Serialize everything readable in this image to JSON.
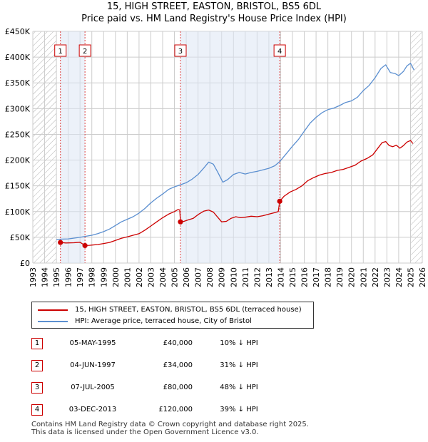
{
  "title_line1": "15, HIGH STREET, EASTON, BRISTOL, BS5 6DL",
  "title_line2": "Price paid vs. HM Land Registry's House Price Index (HPI)",
  "colors": {
    "property": "#cc0000",
    "hpi": "#5b8fd0",
    "grid": "#cccccc",
    "shade": "#dde6f4",
    "hatch": "#999999"
  },
  "chart_data": {
    "type": "line",
    "title": "Price paid vs. HM Land Registry's House Price Index (HPI)",
    "xlabel": "",
    "ylabel": "",
    "xlim": [
      1993,
      2026
    ],
    "ylim": [
      0,
      450000
    ],
    "x_ticks": [
      "1993",
      "1994",
      "1995",
      "1996",
      "1997",
      "1998",
      "1999",
      "2000",
      "2001",
      "2002",
      "2003",
      "2004",
      "2005",
      "2006",
      "2007",
      "2008",
      "2009",
      "2010",
      "2011",
      "2012",
      "2013",
      "2014",
      "2015",
      "2016",
      "2017",
      "2018",
      "2019",
      "2020",
      "2021",
      "2022",
      "2023",
      "2024",
      "2025",
      "2026"
    ],
    "y_ticks": [
      {
        "value": 0,
        "label": "£0"
      },
      {
        "value": 50000,
        "label": "£50K"
      },
      {
        "value": 100000,
        "label": "£100K"
      },
      {
        "value": 150000,
        "label": "£150K"
      },
      {
        "value": 200000,
        "label": "£200K"
      },
      {
        "value": 250000,
        "label": "£250K"
      },
      {
        "value": 300000,
        "label": "£300K"
      },
      {
        "value": 350000,
        "label": "£350K"
      },
      {
        "value": 400000,
        "label": "£400K"
      },
      {
        "value": 450000,
        "label": "£450K"
      }
    ],
    "grid": true,
    "hatched_before": 1995.0,
    "hatched_after": 2025.0,
    "series": [
      {
        "name": "15, HIGH STREET, EASTON, BRISTOL, BS5 6DL (terraced house)",
        "color": "#cc0000",
        "points": [
          [
            1995.34,
            40000
          ],
          [
            1995.8,
            39000
          ],
          [
            1996.5,
            39500
          ],
          [
            1997.0,
            40500
          ],
          [
            1997.42,
            34000
          ],
          [
            1997.8,
            34500
          ],
          [
            1998.5,
            36000
          ],
          [
            1999.0,
            38000
          ],
          [
            1999.5,
            40000
          ],
          [
            2000.0,
            44000
          ],
          [
            2000.5,
            48000
          ],
          [
            2001.0,
            51000
          ],
          [
            2001.5,
            54000
          ],
          [
            2002.0,
            57000
          ],
          [
            2002.5,
            64000
          ],
          [
            2003.0,
            72000
          ],
          [
            2003.5,
            80000
          ],
          [
            2004.0,
            88000
          ],
          [
            2004.5,
            95000
          ],
          [
            2005.0,
            100000
          ],
          [
            2005.3,
            104000
          ],
          [
            2005.45,
            103000
          ],
          [
            2005.51,
            80000
          ],
          [
            2005.8,
            81000
          ],
          [
            2006.2,
            84000
          ],
          [
            2006.6,
            87000
          ],
          [
            2007.0,
            94000
          ],
          [
            2007.5,
            101000
          ],
          [
            2007.9,
            103000
          ],
          [
            2008.3,
            99000
          ],
          [
            2008.7,
            88000
          ],
          [
            2009.0,
            80000
          ],
          [
            2009.4,
            81000
          ],
          [
            2009.8,
            87000
          ],
          [
            2010.2,
            90000
          ],
          [
            2010.6,
            88000
          ],
          [
            2011.0,
            89000
          ],
          [
            2011.5,
            91000
          ],
          [
            2012.0,
            90000
          ],
          [
            2012.5,
            92000
          ],
          [
            2013.0,
            95000
          ],
          [
            2013.5,
            98000
          ],
          [
            2013.8,
            100000
          ],
          [
            2013.92,
            120000
          ],
          [
            2014.3,
            130000
          ],
          [
            2014.8,
            138000
          ],
          [
            2015.3,
            143000
          ],
          [
            2015.8,
            150000
          ],
          [
            2016.3,
            160000
          ],
          [
            2016.8,
            166000
          ],
          [
            2017.3,
            171000
          ],
          [
            2017.8,
            174000
          ],
          [
            2018.3,
            176000
          ],
          [
            2018.8,
            180000
          ],
          [
            2019.3,
            182000
          ],
          [
            2019.8,
            186000
          ],
          [
            2020.3,
            190000
          ],
          [
            2020.8,
            198000
          ],
          [
            2021.3,
            203000
          ],
          [
            2021.8,
            210000
          ],
          [
            2022.2,
            222000
          ],
          [
            2022.6,
            234000
          ],
          [
            2022.9,
            236000
          ],
          [
            2023.2,
            228000
          ],
          [
            2023.5,
            226000
          ],
          [
            2023.8,
            229000
          ],
          [
            2024.1,
            223000
          ],
          [
            2024.4,
            228000
          ],
          [
            2024.7,
            235000
          ],
          [
            2025.0,
            238000
          ],
          [
            2025.2,
            232000
          ]
        ]
      },
      {
        "name": "HPI: Average price, terraced house, City of Bristol",
        "color": "#5b8fd0",
        "points": [
          [
            1995.0,
            46000
          ],
          [
            1995.5,
            46500
          ],
          [
            1996.0,
            47000
          ],
          [
            1996.5,
            48500
          ],
          [
            1997.0,
            50000
          ],
          [
            1997.5,
            52000
          ],
          [
            1998.0,
            54000
          ],
          [
            1998.5,
            57000
          ],
          [
            1999.0,
            61000
          ],
          [
            1999.5,
            66000
          ],
          [
            2000.0,
            73000
          ],
          [
            2000.5,
            80000
          ],
          [
            2001.0,
            85000
          ],
          [
            2001.5,
            90000
          ],
          [
            2002.0,
            97000
          ],
          [
            2002.5,
            106000
          ],
          [
            2003.0,
            117000
          ],
          [
            2003.5,
            126000
          ],
          [
            2004.0,
            134000
          ],
          [
            2004.5,
            143000
          ],
          [
            2005.0,
            148000
          ],
          [
            2005.5,
            152000
          ],
          [
            2006.0,
            156000
          ],
          [
            2006.5,
            163000
          ],
          [
            2007.0,
            172000
          ],
          [
            2007.5,
            185000
          ],
          [
            2007.9,
            196000
          ],
          [
            2008.3,
            192000
          ],
          [
            2008.7,
            175000
          ],
          [
            2009.1,
            157000
          ],
          [
            2009.5,
            162000
          ],
          [
            2010.0,
            172000
          ],
          [
            2010.5,
            176000
          ],
          [
            2011.0,
            173000
          ],
          [
            2011.5,
            176000
          ],
          [
            2012.0,
            178000
          ],
          [
            2012.5,
            181000
          ],
          [
            2013.0,
            184000
          ],
          [
            2013.5,
            189000
          ],
          [
            2013.92,
            197000
          ],
          [
            2014.5,
            213000
          ],
          [
            2015.0,
            227000
          ],
          [
            2015.5,
            240000
          ],
          [
            2016.0,
            256000
          ],
          [
            2016.5,
            272000
          ],
          [
            2017.0,
            283000
          ],
          [
            2017.5,
            292000
          ],
          [
            2018.0,
            298000
          ],
          [
            2018.5,
            301000
          ],
          [
            2019.0,
            306000
          ],
          [
            2019.5,
            312000
          ],
          [
            2020.0,
            315000
          ],
          [
            2020.5,
            322000
          ],
          [
            2021.0,
            335000
          ],
          [
            2021.5,
            345000
          ],
          [
            2022.0,
            360000
          ],
          [
            2022.5,
            378000
          ],
          [
            2022.9,
            385000
          ],
          [
            2023.3,
            370000
          ],
          [
            2023.7,
            368000
          ],
          [
            2024.0,
            364000
          ],
          [
            2024.4,
            372000
          ],
          [
            2024.7,
            383000
          ],
          [
            2025.0,
            388000
          ],
          [
            2025.3,
            375000
          ]
        ]
      }
    ],
    "sales": [
      {
        "num": "1",
        "x": 1995.34,
        "y": 40000
      },
      {
        "num": "2",
        "x": 1997.42,
        "y": 34000
      },
      {
        "num": "3",
        "x": 2005.51,
        "y": 80000
      },
      {
        "num": "4",
        "x": 2013.92,
        "y": 120000
      }
    ]
  },
  "legend": {
    "property": "15, HIGH STREET, EASTON, BRISTOL, BS5 6DL (terraced house)",
    "hpi": "HPI: Average price, terraced house, City of Bristol"
  },
  "transactions": [
    {
      "num": "1",
      "date": "05-MAY-1995",
      "price": "£40,000",
      "hpi": "10% ↓ HPI"
    },
    {
      "num": "2",
      "date": "04-JUN-1997",
      "price": "£34,000",
      "hpi": "31% ↓ HPI"
    },
    {
      "num": "3",
      "date": "07-JUL-2005",
      "price": "£80,000",
      "hpi": "48% ↓ HPI"
    },
    {
      "num": "4",
      "date": "03-DEC-2013",
      "price": "£120,000",
      "hpi": "39% ↓ HPI"
    }
  ],
  "footer": {
    "line1": "Contains HM Land Registry data © Crown copyright and database right 2025.",
    "line2": "This data is licensed under the Open Government Licence v3.0."
  }
}
